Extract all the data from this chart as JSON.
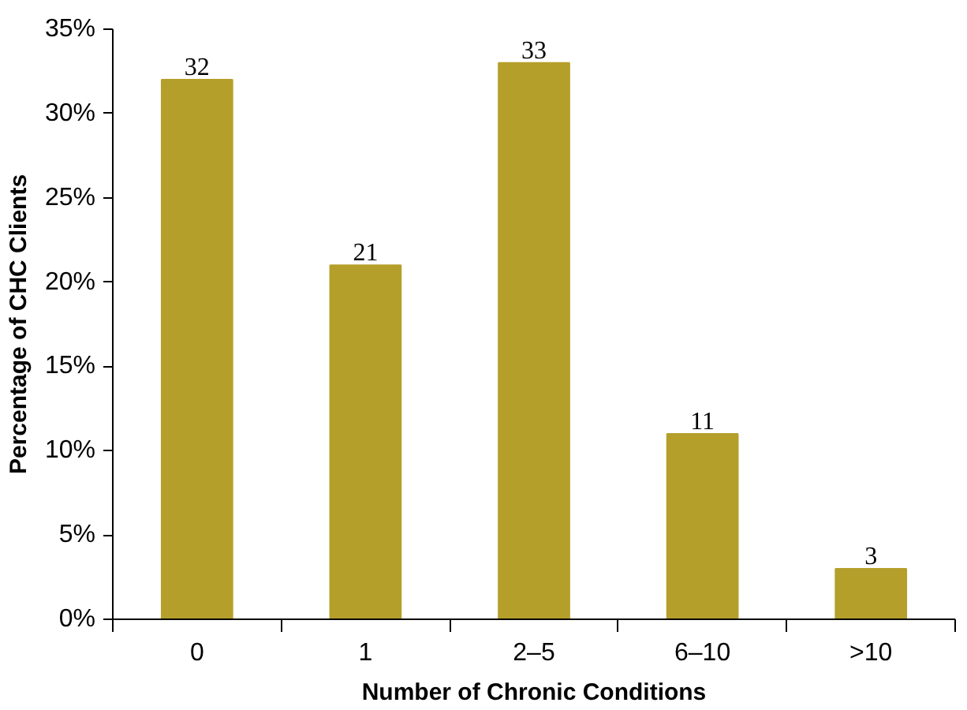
{
  "chart_data": {
    "type": "bar",
    "xlabel": "Number of Chronic Conditions",
    "ylabel": "Percentage of CHC Clients",
    "categories": [
      "0",
      "1",
      "2–5",
      "6–10",
      ">10"
    ],
    "values": [
      32,
      21,
      33,
      11,
      3
    ],
    "color": "#b59f2b",
    "data_labels": true,
    "ylim": [
      0,
      35
    ],
    "yticks": [
      {
        "value": 0,
        "label": "0%"
      },
      {
        "value": 5,
        "label": "5%"
      },
      {
        "value": 10,
        "label": "10%"
      },
      {
        "value": 15,
        "label": "15%"
      },
      {
        "value": 20,
        "label": "20%"
      },
      {
        "value": 25,
        "label": "25%"
      },
      {
        "value": 30,
        "label": "30%"
      },
      {
        "value": 35,
        "label": "35%"
      }
    ],
    "grid": false
  }
}
